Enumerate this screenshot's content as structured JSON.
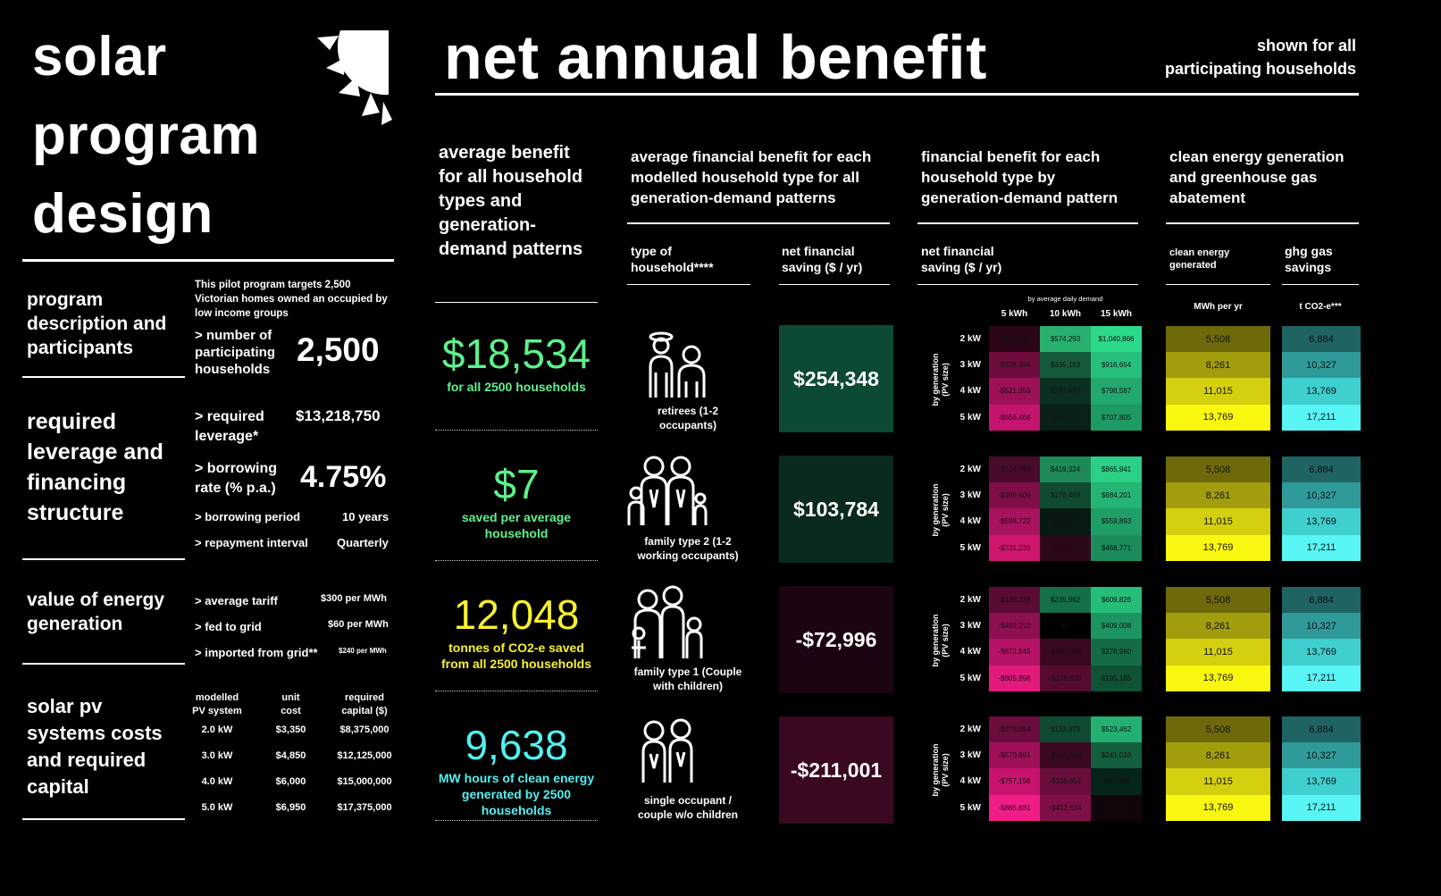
{
  "left": {
    "title": [
      "solar",
      "program",
      "design"
    ],
    "program": {
      "label": [
        "program",
        "description and",
        "participants"
      ],
      "intro": "This pilot program targets 2,500 Victorian homes owned an occupied by low income groups",
      "households_label": [
        "> number of",
        "participating",
        "households"
      ],
      "households_value": "2,500"
    },
    "leverage": {
      "label": [
        "required",
        "leverage and",
        "financing",
        "structure"
      ],
      "required_label": [
        "> required",
        "leverage*"
      ],
      "required_value": "$13,218,750",
      "borrow_label": [
        "> borrowing",
        "rate (% p.a.)"
      ],
      "borrow_value": "4.75%",
      "period_label": "> borrowing period",
      "period_value": "10 years",
      "interval_label": "> repayment interval",
      "interval_value": "Quarterly"
    },
    "value": {
      "label": [
        "value of energy",
        "generation"
      ],
      "rows": [
        {
          "label": "> average tariff",
          "value": "$300 per MWh"
        },
        {
          "label": "> fed to grid",
          "value": "$60 per MWh"
        },
        {
          "label": "> imported from grid**",
          "value": "$240 per MWh"
        }
      ]
    },
    "costs": {
      "label": [
        "solar pv",
        "systems costs",
        "and required",
        "capital"
      ],
      "headers": [
        "modelled\nPV system",
        "unit\ncost",
        "required\ncapital ($)"
      ],
      "rows": [
        {
          "system": "2.0 kW",
          "unit": "$3,350",
          "capital": "$8,375,000"
        },
        {
          "system": "3.0 kW",
          "unit": "$4,850",
          "capital": "$12,125,000"
        },
        {
          "system": "4.0 kW",
          "unit": "$6,000",
          "capital": "$15,000,000"
        },
        {
          "system": "5.0 kW",
          "unit": "$6,950",
          "capital": "$17,375,000"
        }
      ]
    }
  },
  "header": {
    "title": "net annual benefit",
    "note": [
      "shown for all",
      "participating households"
    ]
  },
  "col1": {
    "heading": [
      "average benefit",
      "for all household",
      "types and",
      "generation-",
      "demand patterns"
    ],
    "stats": [
      {
        "value": "$18,534",
        "sub": "for all 2500 households",
        "color": "#5ef18c"
      },
      {
        "value": "$7",
        "sub": "saved per average household",
        "color": "#5ef18c"
      },
      {
        "value": "12,048",
        "sub": "tonnes of CO2-e saved from all 2500 households",
        "color": "#f9f12e"
      },
      {
        "value": "9,638",
        "sub": "MW hours of clean energy generated by 2500 households",
        "color": "#53f0f0"
      }
    ]
  },
  "col2": {
    "heading": [
      "average financial benefit for each",
      "modelled household type for all",
      "generation-demand patterns"
    ],
    "type_head": [
      "type of",
      "household****"
    ],
    "saving_head": [
      "net financial",
      "saving ($ / yr)"
    ],
    "rows": [
      {
        "type": "retirees (1-2 occupants)",
        "saving": "$254,348",
        "bg": "#0c4a33"
      },
      {
        "type": "family type 2 (1-2 working occupants)",
        "saving": "$103,784",
        "bg": "#0a2a1e"
      },
      {
        "type": "family type 1 (Couple with children)",
        "saving": "-$72,996",
        "bg": "#1c0512"
      },
      {
        "type": "single occupant / couple w/o children",
        "saving": "-$211,001",
        "bg": "#3a0820"
      }
    ]
  },
  "col3": {
    "heading": [
      "financial benefit for each",
      "household type by",
      "generation-demand pattern"
    ],
    "saving_head": [
      "net financial",
      "saving ($ / yr)"
    ],
    "demand_note": "by average daily demand",
    "cols": [
      "5 kWh",
      "10 kWh",
      "15 kWh"
    ],
    "rows_label": [
      "2 kW",
      "3 kW",
      "4 kW",
      "5 kW"
    ],
    "side_label": [
      "by generation",
      "(PV size)"
    ],
    "grids": [
      [
        [
          "-$35,000",
          "$574,293",
          "$1,040,866"
        ],
        [
          "-$326,394",
          "$335,183",
          "$916,654"
        ],
        [
          "-$521,958",
          "$187,492",
          "$798,587"
        ],
        [
          "-$656,468",
          "$45,021",
          "$707,805"
        ]
      ],
      [
        [
          "-$104,753",
          "$419,324",
          "$865,941"
        ],
        [
          "-$399,606",
          "$176,469",
          "$684,201"
        ],
        [
          "-$598,722",
          "$12,120",
          "$559,893"
        ],
        [
          "-$731,232",
          "-$117,640",
          "$468,771"
        ]
      ],
      [
        [
          "-$183,118",
          "$235,962",
          "$609,826"
        ],
        [
          "-$482,210",
          "$0",
          "$409,008"
        ],
        [
          "-$672,845",
          "-$165,015",
          "$278,960"
        ],
        [
          "-$805,996",
          "-$276,670",
          "$195,165"
        ]
      ],
      [
        [
          "-$278,054",
          "$133,979",
          "$523,462"
        ],
        [
          "-$570,691",
          "-$161,050",
          "$241,033"
        ],
        [
          "-$757,198",
          "-$335,851",
          "$65,283"
        ],
        [
          "-$885,681",
          "-$452,634",
          "-$25,000"
        ]
      ]
    ],
    "grid_colors": [
      [
        [
          "#2a0618",
          "#27b06e",
          "#2cd98a"
        ],
        [
          "#6e0d3d",
          "#155a3b",
          "#26c07c"
        ],
        [
          "#9c1058",
          "#0b2f20",
          "#22a96d"
        ],
        [
          "#c4146d",
          "#0a2018",
          "#1e9a63"
        ]
      ],
      [
        [
          "#4a0a2b",
          "#1d8a58",
          "#2ad085"
        ],
        [
          "#7f0e46",
          "#0f4a31",
          "#25b574"
        ],
        [
          "#a9125e",
          "#081a13",
          "#1f9f66"
        ],
        [
          "#d0166f",
          "#2d071a",
          "#1b8c5a"
        ]
      ],
      [
        [
          "#5b0b34",
          "#157047",
          "#26bd79"
        ],
        [
          "#8e1050",
          "#000000",
          "#1d9560"
        ],
        [
          "#b71366",
          "#3a0820",
          "#146c45"
        ],
        [
          "#e21a7c",
          "#560b30",
          "#0f5234"
        ]
      ],
      [
        [
          "#6a0d3c",
          "#0f4a31",
          "#23b071"
        ],
        [
          "#9e1159",
          "#3b0822",
          "#135f3e"
        ],
        [
          "#c8146e",
          "#6b0d3c",
          "#06241a"
        ],
        [
          "#f01d87",
          "#7f0f47",
          "#12040b"
        ]
      ]
    ]
  },
  "col4": {
    "heading": [
      "clean energy generation",
      "and greenhouse gas",
      "abatement"
    ],
    "clean_head": [
      "clean energy",
      "generated"
    ],
    "ghg_head": [
      "ghg gas",
      "savings"
    ],
    "clean_unit": "MWh per yr",
    "ghg_unit": "t CO2-e***",
    "clean_values": [
      "5,508",
      "8,261",
      "11,015",
      "13,769"
    ],
    "ghg_values": [
      "6,884",
      "10,327",
      "13,769",
      "17,211"
    ],
    "clean_colors": [
      "#6e6a0b",
      "#a19d0d",
      "#d4cf0f",
      "#f9f70f"
    ],
    "ghg_colors": [
      "#1f6463",
      "#2f9a99",
      "#3fcfcf",
      "#59f4f4"
    ]
  }
}
